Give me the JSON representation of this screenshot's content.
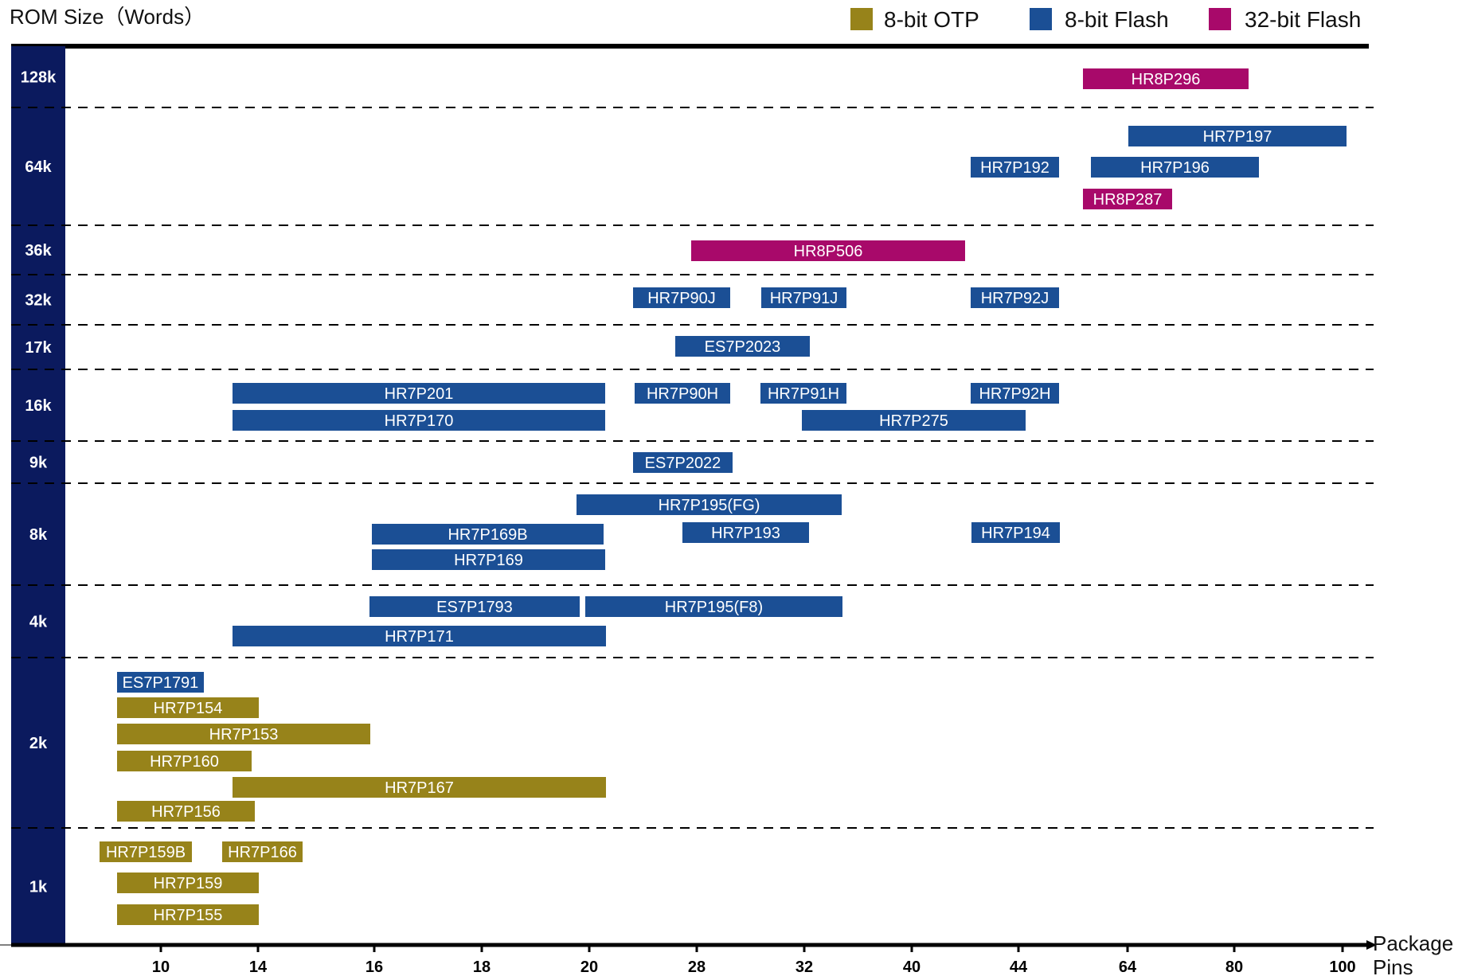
{
  "chart_data": {
    "type": "bar",
    "orientation": "horizontal-range",
    "title": "ROM Size（Words）",
    "xlabel": "Package Pins",
    "ylabel": "ROM Size（Words）",
    "x_ticks": [
      "10",
      "14",
      "16",
      "18",
      "20",
      "28",
      "32",
      "40",
      "44",
      "64",
      "80",
      "100"
    ],
    "y_bands": [
      "128k",
      "64k",
      "36k",
      "32k",
      "17k",
      "16k",
      "9k",
      "8k",
      "4k",
      "2k",
      "1k"
    ],
    "legend": [
      {
        "label": "8-bit OTP",
        "color": "#97831a"
      },
      {
        "label": "8-bit Flash",
        "color": "#1b4f95"
      },
      {
        "label": "32-bit Flash",
        "color": "#a8096a"
      }
    ],
    "grid": "dashed horizontal lines between ROM bands",
    "legend_position": "top-right",
    "series": [
      {
        "name": "8-bit OTP",
        "color": "#97831a",
        "bars": [
          {
            "label": "HR7P154",
            "band": "2k",
            "start_pin": "10",
            "end_pin": "14"
          },
          {
            "label": "HR7P153",
            "band": "2k",
            "start_pin": "10",
            "end_pin": "16"
          },
          {
            "label": "HR7P160",
            "band": "2k",
            "start_pin": "10",
            "end_pin": "14"
          },
          {
            "label": "HR7P167",
            "band": "2k",
            "start_pin": "14",
            "end_pin": "20"
          },
          {
            "label": "HR7P156",
            "band": "2k",
            "start_pin": "10",
            "end_pin": "14"
          },
          {
            "label": "HR7P159B",
            "band": "1k",
            "start_pin": "10",
            "end_pin": "10"
          },
          {
            "label": "HR7P166",
            "band": "1k",
            "start_pin": "14",
            "end_pin": "14"
          },
          {
            "label": "HR7P159",
            "band": "1k",
            "start_pin": "10",
            "end_pin": "14"
          },
          {
            "label": "HR7P155",
            "band": "1k",
            "start_pin": "10",
            "end_pin": "14"
          }
        ]
      },
      {
        "name": "8-bit Flash",
        "color": "#1b4f95",
        "bars": [
          {
            "label": "HR7P197",
            "band": "64k",
            "start_pin": "64",
            "end_pin": "100"
          },
          {
            "label": "HR7P192",
            "band": "64k",
            "start_pin": "44",
            "end_pin": "44"
          },
          {
            "label": "HR7P196",
            "band": "64k",
            "start_pin": "64",
            "end_pin": "80"
          },
          {
            "label": "HR7P90J",
            "band": "32k",
            "start_pin": "28",
            "end_pin": "28"
          },
          {
            "label": "HR7P91J",
            "band": "32k",
            "start_pin": "32",
            "end_pin": "32"
          },
          {
            "label": "HR7P92J",
            "band": "32k",
            "start_pin": "44",
            "end_pin": "44"
          },
          {
            "label": "ES7P2023",
            "band": "17k",
            "start_pin": "28",
            "end_pin": "32"
          },
          {
            "label": "HR7P201",
            "band": "16k",
            "start_pin": "14",
            "end_pin": "20"
          },
          {
            "label": "HR7P90H",
            "band": "16k",
            "start_pin": "28",
            "end_pin": "28"
          },
          {
            "label": "HR7P91H",
            "band": "16k",
            "start_pin": "32",
            "end_pin": "32"
          },
          {
            "label": "HR7P92H",
            "band": "16k",
            "start_pin": "44",
            "end_pin": "44"
          },
          {
            "label": "HR7P170",
            "band": "16k",
            "start_pin": "14",
            "end_pin": "20"
          },
          {
            "label": "HR7P275",
            "band": "16k",
            "start_pin": "32",
            "end_pin": "44"
          },
          {
            "label": "ES7P2022",
            "band": "9k",
            "start_pin": "28",
            "end_pin": "28"
          },
          {
            "label": "HR7P195(FG)",
            "band": "8k",
            "start_pin": "20",
            "end_pin": "32"
          },
          {
            "label": "HR7P169B",
            "band": "8k",
            "start_pin": "16",
            "end_pin": "20"
          },
          {
            "label": "HR7P193",
            "band": "8k",
            "start_pin": "28",
            "end_pin": "32"
          },
          {
            "label": "HR7P194",
            "band": "8k",
            "start_pin": "44",
            "end_pin": "44"
          },
          {
            "label": "HR7P169",
            "band": "8k",
            "start_pin": "16",
            "end_pin": "20"
          },
          {
            "label": "ES7P1793",
            "band": "4k",
            "start_pin": "16",
            "end_pin": "20"
          },
          {
            "label": "HR7P195(F8)",
            "band": "4k",
            "start_pin": "20",
            "end_pin": "32"
          },
          {
            "label": "HR7P171",
            "band": "4k",
            "start_pin": "14",
            "end_pin": "20"
          },
          {
            "label": "ES7P1791",
            "band": "2k",
            "start_pin": "10",
            "end_pin": "10"
          }
        ]
      },
      {
        "name": "32-bit Flash",
        "color": "#a8096a",
        "bars": [
          {
            "label": "HR8P296",
            "band": "128k",
            "start_pin": "64",
            "end_pin": "80"
          },
          {
            "label": "HR8P287",
            "band": "64k",
            "start_pin": "64",
            "end_pin": "64"
          },
          {
            "label": "HR8P506",
            "band": "36k",
            "start_pin": "28",
            "end_pin": "40"
          }
        ]
      }
    ]
  },
  "colors": {
    "otp": "#97831a",
    "flash8": "#1b4f95",
    "flash32": "#a8096a",
    "band_column": "#0b1a5e",
    "axis": "#000000"
  }
}
